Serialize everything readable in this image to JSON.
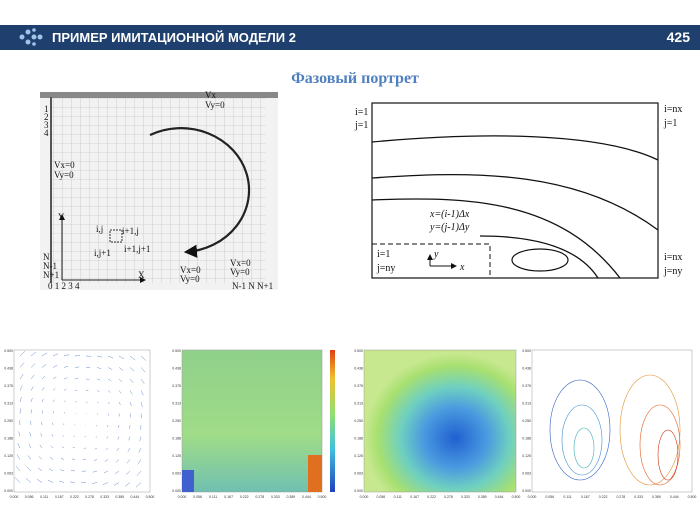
{
  "header": {
    "title": "ПРИМЕР ИМИТАЦИОННОЙ МОДЕЛИ 2",
    "page_number": "425"
  },
  "subtitle": "Фазовый портрет",
  "grid_diagram": {
    "vx_top": "Vx",
    "vy_top": "Vy=0",
    "rows": [
      "1",
      "2",
      "3",
      "4"
    ],
    "left_vx": "Vx=0",
    "left_vy": "Vy=0",
    "y_axis": "Y",
    "x_axis": "X",
    "cell_ij": "i,j",
    "cell_i1j": "i+1,j",
    "cell_ij1": "i,j+1",
    "cell_i1j1": "i+1,j+1",
    "right_vx": "Vx=0",
    "right_vy": "Vy=0",
    "bottom_vx": "Vx=0",
    "bottom_vy": "Vy=0",
    "row_n": [
      "N",
      "N-1",
      "N+1"
    ],
    "cols_start": "0 1 2 3 4",
    "cols_end": "N-1 N N+1"
  },
  "flow_diagram": {
    "top_left": [
      "i=1",
      "j=1"
    ],
    "top_right": [
      "i=nx",
      "j=1"
    ],
    "bottom_left": [
      "i=1",
      "j=ny"
    ],
    "bottom_right": [
      "i=nx",
      "j=ny"
    ],
    "formula_x": "x=(i-1)Δx",
    "formula_y": "y=(j-1)Δy",
    "axis_y": "y",
    "axis_x": "x"
  },
  "plot_axes": {
    "xticks": [
      "0.000",
      "0.056",
      "0.111",
      "0.167",
      "0.222",
      "0.278",
      "0.333",
      "0.389",
      "0.444",
      "0.500"
    ],
    "yticks": [
      "0.500",
      "0.438",
      "0.375",
      "0.313",
      "0.250",
      "0.188",
      "0.125",
      "0.063",
      "0.000"
    ]
  }
}
